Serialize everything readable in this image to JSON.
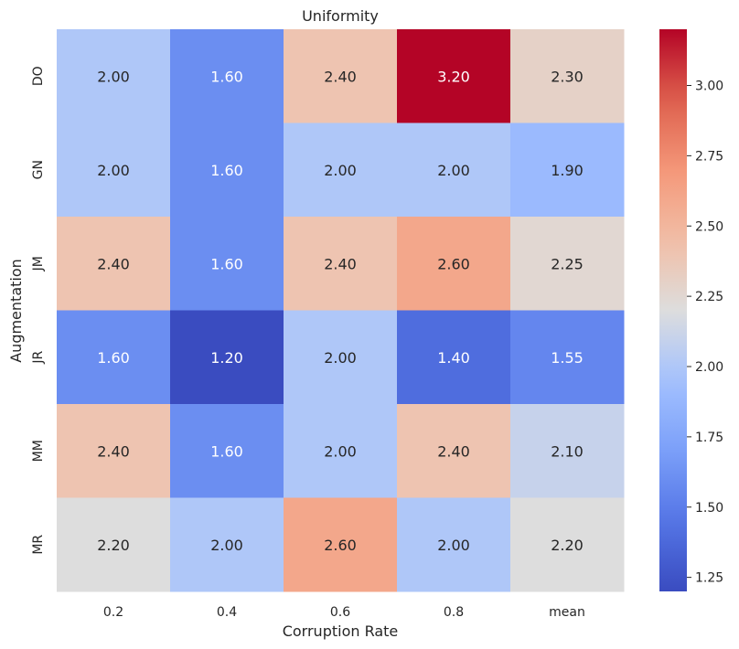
{
  "chart_data": {
    "type": "heatmap",
    "title": "Uniformity",
    "xlabel": "Corruption Rate",
    "ylabel": "Augmentation",
    "x_categories": [
      "0.2",
      "0.4",
      "0.6",
      "0.8",
      "mean"
    ],
    "y_categories": [
      "DO",
      "GN",
      "JM",
      "JR",
      "MM",
      "MR"
    ],
    "values": [
      [
        2.0,
        1.6,
        2.4,
        3.2,
        2.3
      ],
      [
        2.0,
        1.6,
        2.0,
        2.0,
        1.9
      ],
      [
        2.4,
        1.6,
        2.4,
        2.6,
        2.25
      ],
      [
        1.6,
        1.2,
        2.0,
        1.4,
        1.55
      ],
      [
        2.4,
        1.6,
        2.0,
        2.4,
        2.1
      ],
      [
        2.2,
        2.0,
        2.6,
        2.0,
        2.2
      ]
    ],
    "cell_labels": [
      [
        "2.00",
        "1.60",
        "2.40",
        "3.20",
        "2.30"
      ],
      [
        "2.00",
        "1.60",
        "2.00",
        "2.00",
        "1.90"
      ],
      [
        "2.40",
        "1.60",
        "2.40",
        "2.60",
        "2.25"
      ],
      [
        "1.60",
        "1.20",
        "2.00",
        "1.40",
        "1.55"
      ],
      [
        "2.40",
        "1.60",
        "2.00",
        "2.40",
        "2.10"
      ],
      [
        "2.20",
        "2.00",
        "2.60",
        "2.00",
        "2.20"
      ]
    ],
    "colormap": "coolwarm",
    "vmin": 1.2,
    "vmax": 3.2,
    "colorbar_ticks": [
      1.25,
      1.5,
      1.75,
      2.0,
      2.25,
      2.5,
      2.75,
      3.0
    ],
    "colorbar_tick_labels": [
      "1.25",
      "1.50",
      "1.75",
      "2.00",
      "2.25",
      "2.50",
      "2.75",
      "3.00"
    ],
    "grid": false,
    "legend": "colorbar-right"
  }
}
